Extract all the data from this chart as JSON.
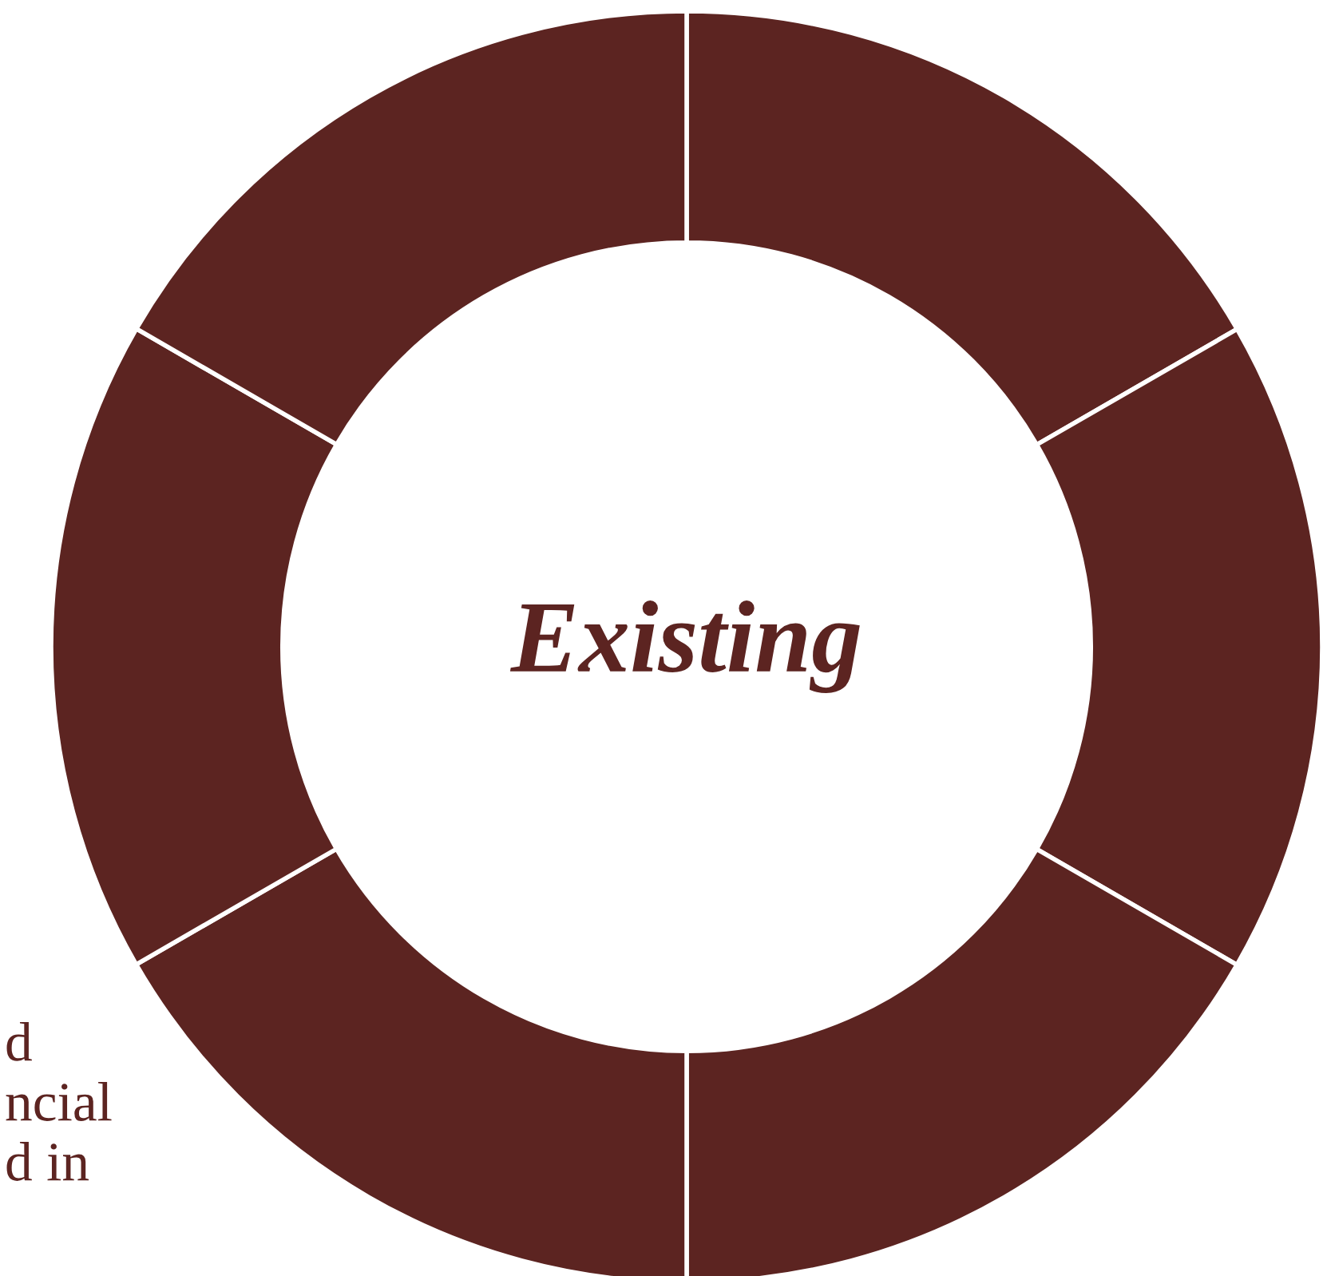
{
  "chart_data": {
    "type": "donut",
    "title": "Existing",
    "categories": [
      null,
      null,
      null,
      null,
      null,
      null
    ],
    "values": [
      16.67,
      16.67,
      16.66,
      16.67,
      16.67,
      16.66
    ],
    "colors": [
      "#5c2421",
      "#5c2421",
      "#5c2421",
      "#5c2421",
      "#5c2421",
      "#5c2421"
    ],
    "annotations": [
      "d\nncial\nd in"
    ]
  }
}
